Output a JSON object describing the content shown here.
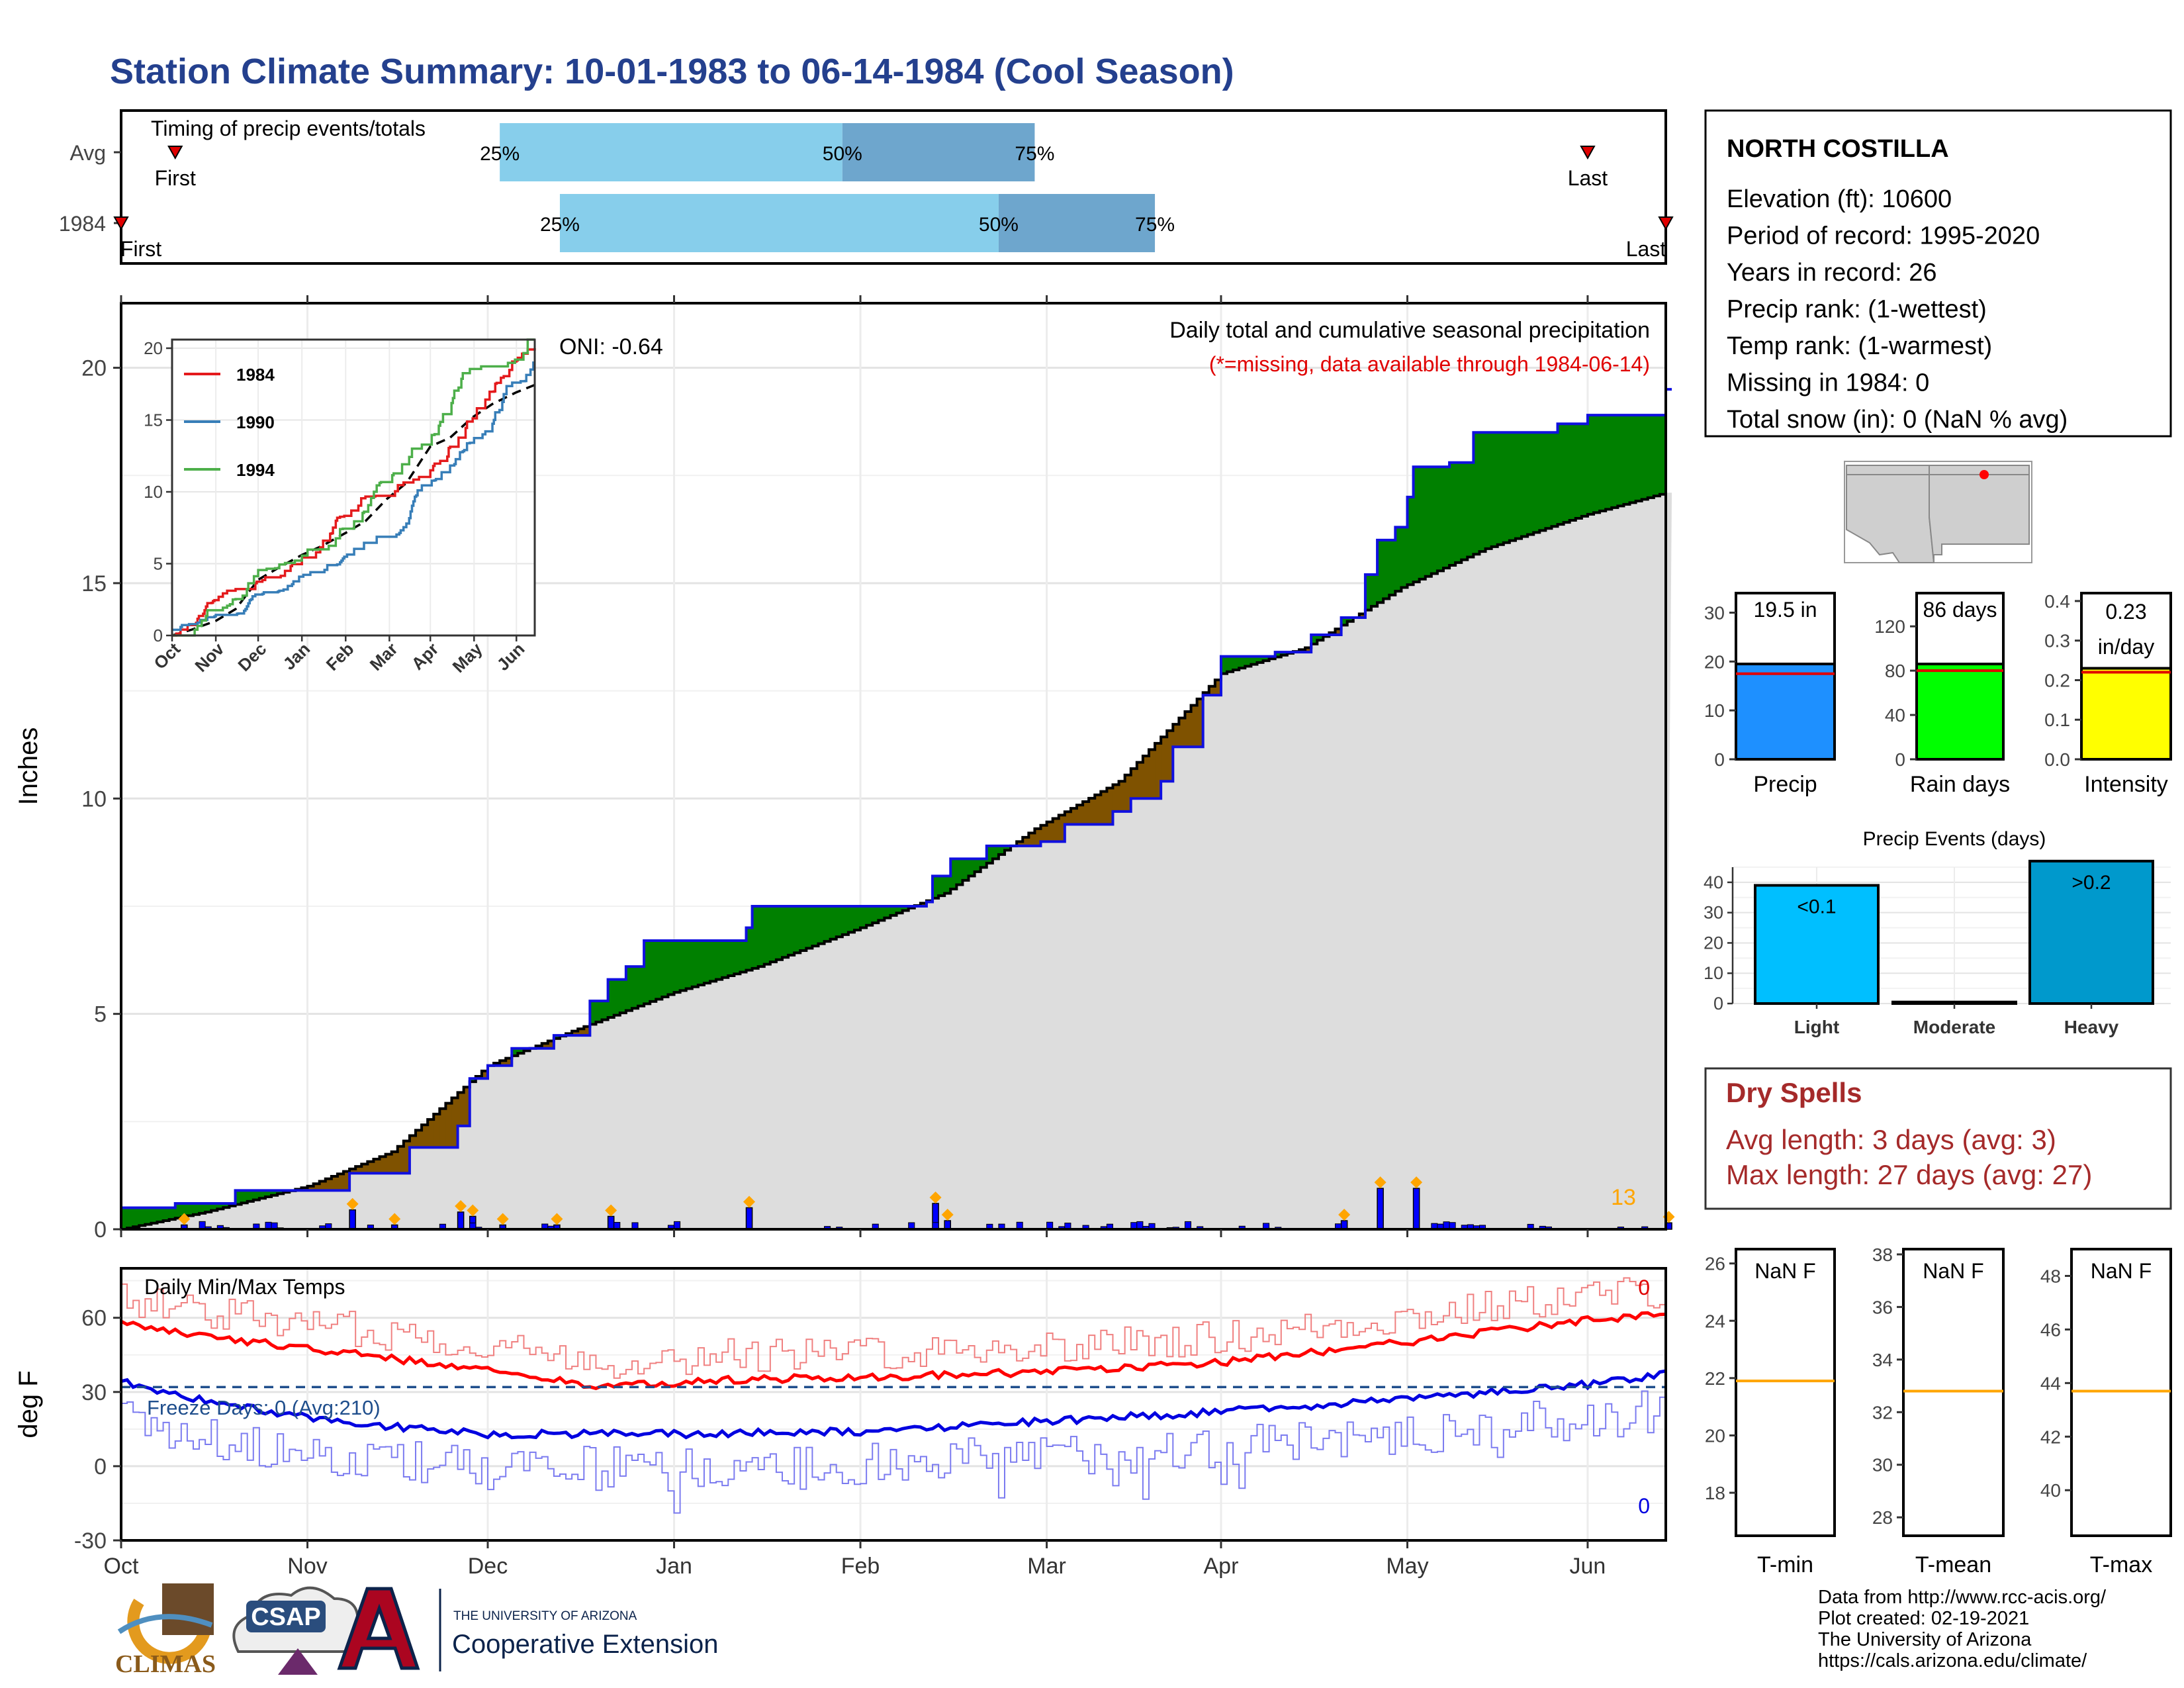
{
  "page_title": "Station Climate Summary: 10-01-1983 to 06-14-1984 (Cool Season)",
  "colors": {
    "title": "#24408e",
    "precip_obs": "#0000ff",
    "cum_avg_fill": "#dddddd",
    "above_avg": "#008000",
    "below_avg": "#7f5200",
    "tmax": "#ff0000",
    "tmin": "#0000ff",
    "freeze_line": "#1f4e8c",
    "dry_spell": "#a52a2a",
    "event_marker": "#ffa500"
  },
  "timing_panel": {
    "title": "Timing of precip events/totals",
    "rows": [
      {
        "label": "Avg",
        "first_label": "First",
        "last_label": "Last",
        "first_date": "1983-10-10",
        "last_date": "1984-06-01",
        "q25_date": "1983-12-03",
        "q50_date": "1984-01-29",
        "q75_date": "1984-03-01",
        "q25_label": "25%",
        "q50_label": "50%",
        "q75_label": "75%"
      },
      {
        "label": "1984",
        "first_label": "First",
        "last_label": "Last",
        "first_date": "1983-10-01",
        "last_date": "1984-06-14",
        "q25_date": "1983-12-13",
        "q50_date": "1984-02-24",
        "q75_date": "1984-03-21",
        "q25_label": "25%",
        "q50_label": "50%",
        "q75_label": "75%"
      }
    ]
  },
  "precip_panel": {
    "ylabel": "Inches",
    "heading": "Daily total and cumulative seasonal precipitation",
    "missing_note": "(*=missing, data available through 1984-06-14)",
    "oni": "ONI: -0.64",
    "event_count": "13",
    "yticks": [
      "0",
      "5",
      "10",
      "15",
      "20"
    ],
    "xticks": [
      "Oct",
      "Nov",
      "Dec",
      "Jan",
      "Feb",
      "Mar",
      "Apr",
      "May",
      "Jun"
    ]
  },
  "analog_inset": {
    "yticks": [
      "0",
      "5",
      "10",
      "15",
      "20"
    ],
    "xticks": [
      "Oct",
      "Nov",
      "Dec",
      "Jan",
      "Feb",
      "Mar",
      "Apr",
      "May",
      "Jun"
    ],
    "legend": [
      {
        "name": "1984",
        "color": "#e41a1c"
      },
      {
        "name": "1990",
        "color": "#377eb8"
      },
      {
        "name": "1994",
        "color": "#4daf4a"
      }
    ]
  },
  "temp_panel": {
    "ylabel": "deg F",
    "heading": "Daily Min/Max Temps",
    "freeze_days": "Freeze Days: 0 (Avg:210)",
    "count_max": "0",
    "count_min": "0",
    "yticks": [
      "-30",
      "0",
      "30",
      "60"
    ],
    "xticks": [
      "Oct",
      "Nov",
      "Dec",
      "Jan",
      "Feb",
      "Mar",
      "Apr",
      "May",
      "Jun"
    ]
  },
  "station": {
    "name": "NORTH COSTILLA",
    "lines": [
      "Elevation (ft): 10600",
      "Period of record: 1995-2020",
      "Years in record: 26",
      "Precip rank:  (1-wettest)",
      "Temp rank:  (1-warmest)",
      "Missing in 1984: 0",
      "Total snow (in): 0 (NaN % avg)"
    ]
  },
  "summary_bars": [
    {
      "label": "Precip",
      "value_text": "19.5 in",
      "value": 19.5,
      "avg": 17.5,
      "ymax": 34,
      "ticks": [
        "0",
        "10",
        "20",
        "30"
      ],
      "tick_vals": [
        0,
        10,
        20,
        30
      ],
      "color": "#1e90ff"
    },
    {
      "label": "Rain days",
      "value_text": "86 days",
      "value": 86,
      "avg": 80,
      "ymax": 150,
      "ticks": [
        "0",
        "40",
        "80",
        "120"
      ],
      "tick_vals": [
        0,
        40,
        80,
        120
      ],
      "color": "#00ff00"
    },
    {
      "label": "Intensity",
      "value_text": "0.23\nin/day",
      "value": 0.23,
      "avg": 0.22,
      "ymax": 0.42,
      "ticks": [
        "0.0",
        "0.1",
        "0.2",
        "0.3",
        "0.4"
      ],
      "tick_vals": [
        0,
        0.1,
        0.2,
        0.3,
        0.4
      ],
      "color": "#ffff00"
    }
  ],
  "precip_events": {
    "title": "Precip Events (days)",
    "yticks": [
      "0",
      "10",
      "20",
      "30",
      "40"
    ],
    "ymax": 45,
    "categories": [
      "Light",
      "Moderate",
      "Heavy"
    ],
    "labels": [
      "<0.1",
      "",
      ">0.2"
    ],
    "values": [
      39,
      0.5,
      47
    ],
    "colors": [
      "#00bfff",
      "#1e90ff",
      "#0099cc"
    ]
  },
  "dry_spells": {
    "title": "Dry Spells",
    "avg_length": "Avg length: 3 days (avg: 3)",
    "max_length": "Max length: 27 days (avg: 27)"
  },
  "temp_boxes": [
    {
      "label": "T-min",
      "value_text": "NaN F",
      "avg": 21.9,
      "ymin": 16.5,
      "ymax": 26.5,
      "ticks": [
        "18",
        "20",
        "22",
        "24",
        "26"
      ],
      "tick_vals": [
        18,
        20,
        22,
        24,
        26
      ]
    },
    {
      "label": "T-mean",
      "value_text": "NaN F",
      "avg": 32.8,
      "ymin": 27.3,
      "ymax": 38.2,
      "ticks": [
        "28",
        "30",
        "32",
        "34",
        "36",
        "38"
      ],
      "tick_vals": [
        28,
        30,
        32,
        34,
        36,
        38
      ]
    },
    {
      "label": "T-max",
      "value_text": "NaN F",
      "avg": 43.7,
      "ymin": 38.3,
      "ymax": 49.0,
      "ticks": [
        "40",
        "42",
        "44",
        "46",
        "48"
      ],
      "tick_vals": [
        40,
        42,
        44,
        46,
        48
      ]
    }
  ],
  "footer": {
    "credits": [
      "Data from http://www.rcc-acis.org/",
      "Plot created: 02-19-2021",
      "The University of Arizona",
      "https://cals.arizona.edu/climate/"
    ],
    "logo_climas": "CLIMAS",
    "logo_csap": "CSAP",
    "univ_small": "THE UNIVERSITY OF ARIZONA",
    "univ_big": "Cooperative Extension"
  },
  "chart_data": {
    "type": "area",
    "title": "Daily total and cumulative seasonal precipitation",
    "ylabel": "Inches",
    "ylim": [
      0,
      21.5
    ],
    "x_range": [
      "1983-10-01",
      "1984-06-14"
    ],
    "series": [
      {
        "name": "Cumulative 1984",
        "points": [
          [
            "1983-10-01",
            0.5
          ],
          [
            "1983-10-10",
            0.6
          ],
          [
            "1983-10-20",
            0.9
          ],
          [
            "1983-11-08",
            0.9
          ],
          [
            "1983-11-08",
            1.3
          ],
          [
            "1983-11-18",
            1.9
          ],
          [
            "1983-11-26",
            2.4
          ],
          [
            "1983-11-28",
            3.5
          ],
          [
            "1983-12-01",
            3.8
          ],
          [
            "1983-12-05",
            4.2
          ],
          [
            "1983-12-12",
            4.5
          ],
          [
            "1983-12-18",
            5.3
          ],
          [
            "1983-12-21",
            5.8
          ],
          [
            "1983-12-24",
            6.1
          ],
          [
            "1983-12-27",
            6.7
          ],
          [
            "1984-01-11",
            6.7
          ],
          [
            "1984-01-13",
            7.0
          ],
          [
            "1984-01-14",
            7.5
          ],
          [
            "1984-02-12",
            7.6
          ],
          [
            "1984-02-13",
            8.2
          ],
          [
            "1984-02-16",
            8.6
          ],
          [
            "1984-02-22",
            8.9
          ],
          [
            "1984-03-02",
            9.0
          ],
          [
            "1984-03-06",
            9.4
          ],
          [
            "1984-03-14",
            9.7
          ],
          [
            "1984-03-17",
            10.0
          ],
          [
            "1984-03-22",
            10.4
          ],
          [
            "1984-03-24",
            11.2
          ],
          [
            "1984-03-29",
            12.4
          ],
          [
            "1984-04-01",
            13.3
          ],
          [
            "1984-04-10",
            13.4
          ],
          [
            "1984-04-16",
            13.8
          ],
          [
            "1984-04-21",
            14.2
          ],
          [
            "1984-04-25",
            15.2
          ],
          [
            "1984-04-27",
            16.0
          ],
          [
            "1984-04-30",
            16.3
          ],
          [
            "1984-05-02",
            17.0
          ],
          [
            "1984-05-03",
            17.7
          ],
          [
            "1984-05-09",
            17.8
          ],
          [
            "1984-05-13",
            18.5
          ],
          [
            "1984-05-27",
            18.7
          ],
          [
            "1984-06-01",
            18.9
          ],
          [
            "1984-06-13",
            18.9
          ],
          [
            "1984-06-14",
            19.5
          ]
        ]
      },
      {
        "name": "Cumulative average",
        "points": [
          [
            "1983-10-01",
            0.0
          ],
          [
            "1983-10-15",
            0.4
          ],
          [
            "1983-11-01",
            1.0
          ],
          [
            "1983-11-15",
            1.8
          ],
          [
            "1983-12-01",
            3.8
          ],
          [
            "1983-12-15",
            4.6
          ],
          [
            "1984-01-01",
            5.5
          ],
          [
            "1984-01-15",
            6.1
          ],
          [
            "1984-02-01",
            7.0
          ],
          [
            "1984-02-15",
            7.8
          ],
          [
            "1984-03-01",
            9.3
          ],
          [
            "1984-03-15",
            10.4
          ],
          [
            "1984-04-01",
            12.9
          ],
          [
            "1984-04-15",
            13.5
          ],
          [
            "1984-05-01",
            14.9
          ],
          [
            "1984-05-15",
            15.8
          ],
          [
            "1984-06-01",
            16.6
          ],
          [
            "1984-06-14",
            17.1
          ]
        ]
      },
      {
        "name": "Daily precipitation",
        "points": [
          [
            "1983-10-11",
            0.1
          ],
          [
            "1983-11-08",
            0.45
          ],
          [
            "1983-11-15",
            0.1
          ],
          [
            "1983-11-26",
            0.4
          ],
          [
            "1983-11-28",
            0.3
          ],
          [
            "1983-12-03",
            0.1
          ],
          [
            "1983-12-12",
            0.1
          ],
          [
            "1983-12-21",
            0.3
          ],
          [
            "1984-01-13",
            0.5
          ],
          [
            "1984-02-13",
            0.6
          ],
          [
            "1984-02-15",
            0.2
          ],
          [
            "1984-04-21",
            0.2
          ],
          [
            "1984-04-27",
            0.95
          ],
          [
            "1984-05-03",
            0.95
          ],
          [
            "1984-06-14",
            0.15
          ]
        ]
      }
    ],
    "temperature": {
      "ylabel": "deg F",
      "ylim": [
        -30,
        80
      ],
      "series": [
        {
          "name": "Tmax smoothed",
          "points": [
            [
              "1983-10-01",
              58
            ],
            [
              "1983-10-20",
              51
            ],
            [
              "1983-11-10",
              45
            ],
            [
              "1983-12-01",
              39
            ],
            [
              "1983-12-20",
              32
            ],
            [
              "1984-01-10",
              35
            ],
            [
              "1984-02-01",
              36
            ],
            [
              "1984-03-01",
              38
            ],
            [
              "1984-04-01",
              42
            ],
            [
              "1984-05-01",
              50
            ],
            [
              "1984-06-01",
              59
            ],
            [
              "1984-06-14",
              61
            ]
          ]
        },
        {
          "name": "Tmin smoothed",
          "points": [
            [
              "1983-10-01",
              34
            ],
            [
              "1983-10-20",
              24
            ],
            [
              "1983-11-10",
              17
            ],
            [
              "1983-12-01",
              13
            ],
            [
              "1984-01-01",
              13
            ],
            [
              "1984-02-01",
              14
            ],
            [
              "1984-03-01",
              18
            ],
            [
              "1984-04-01",
              22
            ],
            [
              "1984-05-01",
              27
            ],
            [
              "1984-06-01",
              33
            ],
            [
              "1984-06-14",
              37
            ]
          ]
        },
        {
          "name": "Freezing",
          "points": [
            [
              "1983-10-01",
              32
            ],
            [
              "1984-06-14",
              32
            ]
          ]
        }
      ]
    }
  }
}
